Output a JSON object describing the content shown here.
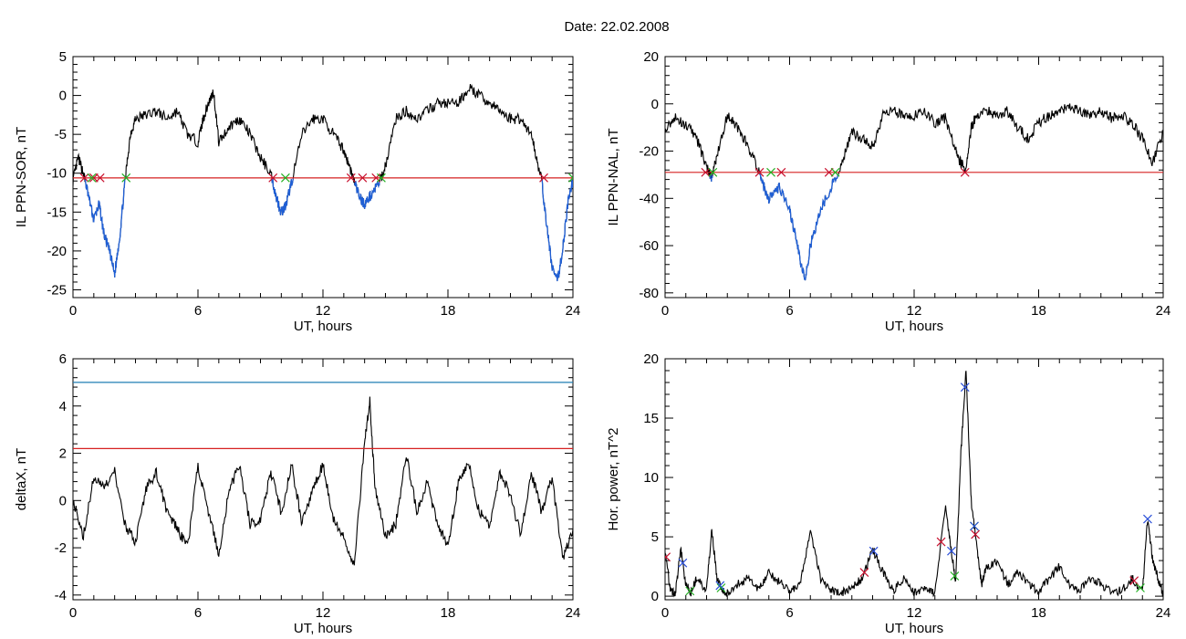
{
  "figure_title": "Date:  22.02.2008",
  "colors": {
    "trace": "#000000",
    "highlight": "#1f5fd6",
    "threshold_red": "#d62020",
    "threshold_blue": "#1f7fb4",
    "marker_red": "#c8102e",
    "marker_green": "#22b022",
    "marker_blue": "#2b4fd8"
  },
  "chart_data": [
    {
      "id": "ppn-sor",
      "type": "line",
      "ylabel": "IL PPN-SOR, nT",
      "xlabel": "UT, hours",
      "xlim": [
        0,
        24
      ],
      "ylim": [
        -26,
        5
      ],
      "xticks": [
        0,
        6,
        12,
        18,
        24
      ],
      "yticks": [
        5,
        0,
        -5,
        -10,
        -15,
        -20,
        -25
      ],
      "threshold": -10.6,
      "series": {
        "x": [
          0,
          0.25,
          0.5,
          0.75,
          1,
          1.25,
          1.5,
          1.75,
          2,
          2.25,
          2.5,
          2.75,
          3,
          3.5,
          4,
          4.5,
          5,
          5.5,
          6,
          6.25,
          6.5,
          6.75,
          7,
          7.5,
          8,
          8.5,
          9,
          9.5,
          9.75,
          10,
          10.25,
          10.5,
          11,
          11.5,
          12,
          12.5,
          13,
          13.25,
          13.5,
          13.75,
          14,
          14.25,
          14.5,
          14.75,
          15,
          15.5,
          16,
          16.5,
          17,
          17.5,
          18,
          18.5,
          19,
          19.5,
          20,
          20.5,
          21,
          21.5,
          22,
          22.25,
          22.5,
          22.75,
          23,
          23.25,
          23.5,
          23.75,
          24
        ],
        "y": [
          -11,
          -8,
          -10,
          -13,
          -16,
          -14,
          -18,
          -20,
          -23,
          -18,
          -11,
          -5,
          -3,
          -2.5,
          -2,
          -3,
          -2,
          -5,
          -6,
          -3,
          -1,
          0.5,
          -6,
          -4,
          -3,
          -5,
          -8,
          -10,
          -13,
          -15,
          -14,
          -11,
          -5,
          -3,
          -3,
          -5,
          -7,
          -9,
          -11,
          -13,
          -14,
          -13,
          -12,
          -11,
          -9,
          -3,
          -2,
          -3,
          -2,
          -1,
          -1,
          -1,
          1,
          0,
          -1,
          -2,
          -3,
          -3,
          -5,
          -8,
          -11,
          -17,
          -22,
          -24,
          -20,
          -14,
          -11
        ]
      },
      "markers_red_x": [
        0.55,
        1.0,
        1.3,
        9.6,
        13.35,
        13.9,
        14.55,
        22.6
      ],
      "markers_green_x": [
        0.9,
        2.55,
        10.2,
        14.8,
        24.0
      ]
    },
    {
      "id": "ppn-nal",
      "type": "line",
      "ylabel": "IL PPN-NAL, nT",
      "xlabel": "UT, hours",
      "xlim": [
        0,
        24
      ],
      "ylim": [
        -82,
        20
      ],
      "xticks": [
        0,
        6,
        12,
        18,
        24
      ],
      "yticks": [
        20,
        0,
        -20,
        -40,
        -60,
        -80
      ],
      "threshold": -29,
      "series": {
        "x": [
          0,
          0.5,
          1,
          1.5,
          2,
          2.25,
          2.5,
          3,
          3.5,
          4,
          4.5,
          4.75,
          5,
          5.5,
          6,
          6.25,
          6.5,
          6.75,
          7,
          7.5,
          8,
          8.5,
          9,
          9.5,
          10,
          10.5,
          11,
          11.5,
          12,
          12.5,
          13,
          13.5,
          14,
          14.25,
          14.5,
          14.75,
          15,
          15.5,
          16,
          16.5,
          17,
          17.5,
          18,
          18.5,
          19,
          19.5,
          20,
          20.5,
          21,
          21.5,
          22,
          22.5,
          23,
          23.5,
          24
        ],
        "y": [
          -10,
          -6,
          -9,
          -14,
          -27,
          -31,
          -22,
          -5,
          -10,
          -18,
          -28,
          -35,
          -40,
          -35,
          -45,
          -55,
          -65,
          -75,
          -60,
          -45,
          -35,
          -25,
          -12,
          -15,
          -18,
          -5,
          -3,
          -5,
          -5,
          -3,
          -8,
          -6,
          -20,
          -25,
          -28,
          -10,
          -5,
          -3,
          -5,
          -3,
          -10,
          -15,
          -8,
          -5,
          -3,
          -1,
          -3,
          -5,
          -3,
          -6,
          -5,
          -8,
          -15,
          -25,
          -12
        ]
      },
      "markers_red_x": [
        1.95,
        4.55,
        5.6,
        7.9,
        14.45
      ],
      "markers_green_x": [
        2.3,
        5.1,
        8.2
      ]
    },
    {
      "id": "deltax",
      "type": "line",
      "ylabel": "deltaX, nT",
      "xlabel": "UT, hours",
      "xlim": [
        0,
        24
      ],
      "ylim": [
        -4.2,
        6
      ],
      "xticks": [
        0,
        6,
        12,
        18,
        24
      ],
      "yticks": [
        6,
        4,
        2,
        0,
        -2,
        -4
      ],
      "threshold_red": 2.2,
      "threshold_blue": 5.0,
      "series": {
        "x": [
          0,
          0.5,
          1,
          1.5,
          2,
          2.5,
          3,
          3.5,
          4,
          4.5,
          5,
          5.5,
          6,
          6.5,
          7,
          7.5,
          8,
          8.5,
          9,
          9.5,
          10,
          10.5,
          11,
          11.5,
          12,
          12.5,
          13,
          13.5,
          14,
          14.25,
          14.5,
          15,
          15.5,
          16,
          16.5,
          17,
          17.5,
          18,
          18.5,
          19,
          19.5,
          20,
          20.5,
          21,
          21.5,
          22,
          22.5,
          23,
          23.5,
          24
        ],
        "y": [
          0,
          -1.5,
          1,
          0.5,
          1.2,
          -1,
          -1.8,
          0.5,
          1.2,
          -0.5,
          -1.2,
          -2,
          1.5,
          -0.5,
          -2.3,
          0.5,
          1.5,
          -1,
          -0.8,
          1.2,
          -0.5,
          1.5,
          -1,
          0.5,
          1.5,
          -0.8,
          -1.5,
          -2.8,
          2.5,
          4.2,
          0.5,
          -1.5,
          -1,
          2,
          -0.5,
          0.8,
          -1,
          -2,
          0.8,
          1.5,
          -0.5,
          -1,
          1.2,
          0.2,
          -1.5,
          1.2,
          -0.5,
          1,
          -2.5,
          -1.2
        ]
      }
    },
    {
      "id": "hor-power",
      "type": "line",
      "ylabel": "Hor. power, nT^2",
      "xlabel": "UT, hours",
      "xlim": [
        0,
        24
      ],
      "ylim": [
        -0.3,
        20
      ],
      "xticks": [
        0,
        6,
        12,
        18,
        24
      ],
      "yticks": [
        20,
        15,
        10,
        5,
        0
      ],
      "series": {
        "x": [
          0,
          0.25,
          0.5,
          0.75,
          1,
          1.25,
          1.5,
          2,
          2.25,
          2.5,
          2.75,
          3,
          3.5,
          4,
          4.5,
          5,
          5.5,
          6,
          6.5,
          7,
          7.5,
          8,
          8.5,
          9,
          9.5,
          10,
          10.5,
          11,
          11.5,
          12,
          12.5,
          13,
          13.5,
          13.75,
          14,
          14.25,
          14.5,
          14.75,
          15,
          15.25,
          15.5,
          16,
          16.5,
          17,
          17.5,
          18,
          18.5,
          19,
          19.5,
          20,
          20.5,
          21,
          21.5,
          22,
          22.5,
          23,
          23.25,
          23.5,
          23.75,
          24
        ],
        "y": [
          4,
          0.5,
          0.2,
          4,
          1,
          0.3,
          1.5,
          0.5,
          5.5,
          1.5,
          0.5,
          0.3,
          1,
          1.5,
          0.5,
          2,
          1.2,
          0.5,
          1,
          5.5,
          1.5,
          0.5,
          0.3,
          0.8,
          1.5,
          4,
          2,
          0.5,
          1.5,
          0.3,
          0.5,
          0.2,
          7.5,
          4.5,
          1,
          12,
          19,
          8,
          4.5,
          1,
          2.5,
          3,
          1,
          2,
          1,
          0.3,
          1.5,
          2.5,
          1,
          0.5,
          1.5,
          1,
          0.3,
          0.5,
          1.5,
          0.5,
          6.5,
          3,
          1.5,
          0.2
        ]
      },
      "markers_blue_x": [
        0.85,
        2.65,
        10.05,
        13.8,
        14.45,
        14.9,
        23.25
      ],
      "markers_green_x": [
        1.2,
        2.7,
        13.95,
        14.9,
        22.9
      ],
      "markers_red_x": [
        0.05,
        9.6,
        13.3,
        14.95,
        22.6
      ]
    }
  ]
}
